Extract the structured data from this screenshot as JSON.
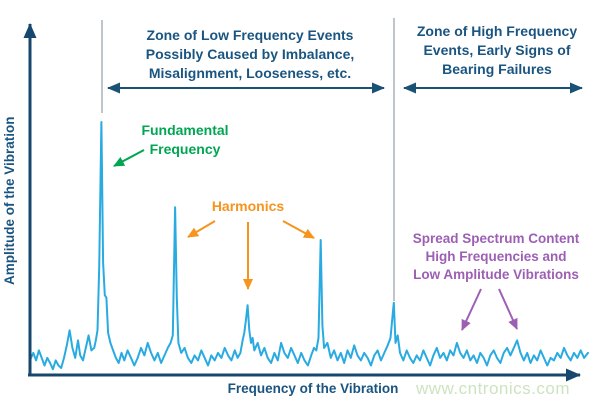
{
  "figure": {
    "y_axis_label": "Amplitude of the Vibration",
    "x_axis_label": "Frequency of the Vibration",
    "watermark": "www.cntronics.com"
  },
  "zones": {
    "low": {
      "label": "Zone of Low Frequency Events\nPossibly Caused by Imbalance,\nMisalignment, Looseness, etc."
    },
    "high": {
      "label": "Zone of High Frequency\nEvents, Early Signs of\nBearing Failures"
    }
  },
  "annotations": {
    "fundamental": {
      "label": "Fundamental\nFrequency",
      "color": "#00a651"
    },
    "harmonics": {
      "label": "Harmonics",
      "color": "#f7941e"
    },
    "spread": {
      "label": "Spread Spectrum Content\nHigh Frequencies and\nLow Amplitude Vibrations",
      "color": "#9d5fb4"
    }
  },
  "colors": {
    "navy_text": "#1a5581",
    "axis": "#17476e",
    "zone_arrow": "#1a5276",
    "spectrum_line": "#29abe2",
    "zone_divider_gray": "#a9b2ba",
    "watermark_green": "#cde3c0"
  },
  "chart_data": {
    "type": "line",
    "title": "",
    "xlabel": "Frequency of the Vibration",
    "ylabel": "Amplitude of the Vibration",
    "x_range_normalized": [
      0,
      1
    ],
    "y_range_normalized": [
      0,
      1
    ],
    "grid": false,
    "legend": false,
    "zone_boundary_x": 0.652,
    "peaks": [
      {
        "name": "fundamental-frequency",
        "x": 0.128,
        "amplitude": 1.0
      },
      {
        "name": "harmonic-1",
        "x": 0.26,
        "amplitude": 0.66
      },
      {
        "name": "harmonic-2",
        "x": 0.39,
        "amplitude": 0.27
      },
      {
        "name": "harmonic-3",
        "x": 0.521,
        "amplitude": 0.53
      },
      {
        "name": "zone-boundary-peak",
        "x": 0.652,
        "amplitude": 0.28
      },
      {
        "name": "spread-spectrum-bump-1",
        "x": 0.765,
        "amplitude": 0.12
      },
      {
        "name": "spread-spectrum-bump-2",
        "x": 0.873,
        "amplitude": 0.13
      }
    ],
    "series": [
      {
        "name": "vibration-spectrum",
        "color": "#29abe2",
        "points": [
          [
            0.0,
            0.05
          ],
          [
            0.006,
            0.08
          ],
          [
            0.011,
            0.05
          ],
          [
            0.016,
            0.09
          ],
          [
            0.021,
            0.06
          ],
          [
            0.026,
            0.03
          ],
          [
            0.031,
            0.06
          ],
          [
            0.036,
            0.04
          ],
          [
            0.041,
            0.015
          ],
          [
            0.046,
            0.05
          ],
          [
            0.051,
            0.03
          ],
          [
            0.056,
            0.02
          ],
          [
            0.061,
            0.06
          ],
          [
            0.066,
            0.11
          ],
          [
            0.071,
            0.17
          ],
          [
            0.076,
            0.1
          ],
          [
            0.081,
            0.06
          ],
          [
            0.086,
            0.13
          ],
          [
            0.09,
            0.07
          ],
          [
            0.095,
            0.05
          ],
          [
            0.1,
            0.1
          ],
          [
            0.105,
            0.15
          ],
          [
            0.11,
            0.09
          ],
          [
            0.115,
            0.1
          ],
          [
            0.118,
            0.13
          ],
          [
            0.121,
            0.17
          ],
          [
            0.124,
            0.42
          ],
          [
            0.128,
            1.0
          ],
          [
            0.131,
            0.44
          ],
          [
            0.134,
            0.31
          ],
          [
            0.137,
            0.3
          ],
          [
            0.14,
            0.16
          ],
          [
            0.144,
            0.12
          ],
          [
            0.149,
            0.09
          ],
          [
            0.154,
            0.06
          ],
          [
            0.159,
            0.04
          ],
          [
            0.164,
            0.08
          ],
          [
            0.169,
            0.05
          ],
          [
            0.175,
            0.09
          ],
          [
            0.181,
            0.06
          ],
          [
            0.187,
            0.03
          ],
          [
            0.193,
            0.06
          ],
          [
            0.199,
            0.1
          ],
          [
            0.205,
            0.07
          ],
          [
            0.211,
            0.12
          ],
          [
            0.217,
            0.08
          ],
          [
            0.223,
            0.05
          ],
          [
            0.229,
            0.08
          ],
          [
            0.235,
            0.04
          ],
          [
            0.241,
            0.07
          ],
          [
            0.247,
            0.1
          ],
          [
            0.252,
            0.12
          ],
          [
            0.256,
            0.15
          ],
          [
            0.26,
            0.66
          ],
          [
            0.263,
            0.3
          ],
          [
            0.266,
            0.12
          ],
          [
            0.271,
            0.08
          ],
          [
            0.277,
            0.1
          ],
          [
            0.283,
            0.06
          ],
          [
            0.289,
            0.04
          ],
          [
            0.295,
            0.07
          ],
          [
            0.301,
            0.05
          ],
          [
            0.307,
            0.09
          ],
          [
            0.313,
            0.06
          ],
          [
            0.319,
            0.03
          ],
          [
            0.325,
            0.07
          ],
          [
            0.331,
            0.05
          ],
          [
            0.337,
            0.08
          ],
          [
            0.343,
            0.06
          ],
          [
            0.349,
            0.1
          ],
          [
            0.355,
            0.07
          ],
          [
            0.361,
            0.05
          ],
          [
            0.367,
            0.09
          ],
          [
            0.372,
            0.06
          ],
          [
            0.377,
            0.08
          ],
          [
            0.381,
            0.13
          ],
          [
            0.384,
            0.16
          ],
          [
            0.387,
            0.21
          ],
          [
            0.39,
            0.27
          ],
          [
            0.393,
            0.17
          ],
          [
            0.396,
            0.12
          ],
          [
            0.399,
            0.14
          ],
          [
            0.402,
            0.09
          ],
          [
            0.408,
            0.12
          ],
          [
            0.414,
            0.07
          ],
          [
            0.42,
            0.1
          ],
          [
            0.426,
            0.06
          ],
          [
            0.432,
            0.04
          ],
          [
            0.438,
            0.08
          ],
          [
            0.444,
            0.05
          ],
          [
            0.45,
            0.12
          ],
          [
            0.456,
            0.08
          ],
          [
            0.462,
            0.06
          ],
          [
            0.468,
            0.1
          ],
          [
            0.474,
            0.07
          ],
          [
            0.48,
            0.04
          ],
          [
            0.486,
            0.08
          ],
          [
            0.492,
            0.05
          ],
          [
            0.498,
            0.03
          ],
          [
            0.504,
            0.07
          ],
          [
            0.509,
            0.1
          ],
          [
            0.513,
            0.09
          ],
          [
            0.517,
            0.14
          ],
          [
            0.521,
            0.53
          ],
          [
            0.524,
            0.19
          ],
          [
            0.527,
            0.1
          ],
          [
            0.533,
            0.12
          ],
          [
            0.539,
            0.06
          ],
          [
            0.545,
            0.09
          ],
          [
            0.551,
            0.05
          ],
          [
            0.557,
            0.08
          ],
          [
            0.563,
            0.04
          ],
          [
            0.569,
            0.09
          ],
          [
            0.575,
            0.06
          ],
          [
            0.581,
            0.11
          ],
          [
            0.587,
            0.07
          ],
          [
            0.593,
            0.05
          ],
          [
            0.599,
            0.08
          ],
          [
            0.605,
            0.06
          ],
          [
            0.611,
            0.03
          ],
          [
            0.617,
            0.07
          ],
          [
            0.623,
            0.09
          ],
          [
            0.629,
            0.05
          ],
          [
            0.635,
            0.08
          ],
          [
            0.641,
            0.11
          ],
          [
            0.646,
            0.14
          ],
          [
            0.652,
            0.28
          ],
          [
            0.655,
            0.12
          ],
          [
            0.659,
            0.15
          ],
          [
            0.663,
            0.08
          ],
          [
            0.669,
            0.05
          ],
          [
            0.675,
            0.09
          ],
          [
            0.681,
            0.06
          ],
          [
            0.687,
            0.04
          ],
          [
            0.693,
            0.07
          ],
          [
            0.699,
            0.05
          ],
          [
            0.705,
            0.09
          ],
          [
            0.711,
            0.06
          ],
          [
            0.717,
            0.03
          ],
          [
            0.723,
            0.07
          ],
          [
            0.729,
            0.1
          ],
          [
            0.735,
            0.06
          ],
          [
            0.741,
            0.08
          ],
          [
            0.747,
            0.05
          ],
          [
            0.753,
            0.09
          ],
          [
            0.759,
            0.07
          ],
          [
            0.765,
            0.12
          ],
          [
            0.771,
            0.08
          ],
          [
            0.777,
            0.06
          ],
          [
            0.783,
            0.09
          ],
          [
            0.789,
            0.05
          ],
          [
            0.795,
            0.07
          ],
          [
            0.801,
            0.04
          ],
          [
            0.807,
            0.08
          ],
          [
            0.813,
            0.06
          ],
          [
            0.819,
            0.03
          ],
          [
            0.825,
            0.07
          ],
          [
            0.831,
            0.09
          ],
          [
            0.837,
            0.06
          ],
          [
            0.843,
            0.04
          ],
          [
            0.849,
            0.08
          ],
          [
            0.855,
            0.1
          ],
          [
            0.861,
            0.07
          ],
          [
            0.867,
            0.1
          ],
          [
            0.873,
            0.13
          ],
          [
            0.879,
            0.08
          ],
          [
            0.885,
            0.05
          ],
          [
            0.891,
            0.08
          ],
          [
            0.897,
            0.04
          ],
          [
            0.903,
            0.07
          ],
          [
            0.909,
            0.05
          ],
          [
            0.915,
            0.09
          ],
          [
            0.921,
            0.06
          ],
          [
            0.927,
            0.03
          ],
          [
            0.933,
            0.06
          ],
          [
            0.939,
            0.05
          ],
          [
            0.945,
            0.08
          ],
          [
            0.951,
            0.06
          ],
          [
            0.957,
            0.1
          ],
          [
            0.963,
            0.07
          ],
          [
            0.969,
            0.05
          ],
          [
            0.975,
            0.08
          ],
          [
            0.981,
            0.06
          ],
          [
            0.987,
            0.09
          ],
          [
            0.993,
            0.06
          ],
          [
            1.0,
            0.08
          ]
        ]
      }
    ]
  }
}
